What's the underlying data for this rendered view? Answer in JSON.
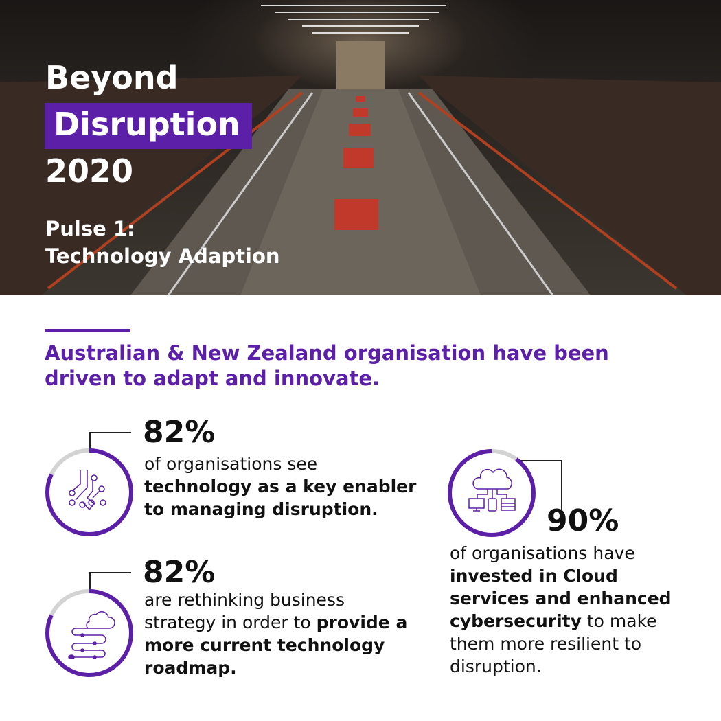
{
  "hero": {
    "title_line1": "Beyond",
    "title_line2": "Disruption",
    "title_line3": "2020",
    "pulse_label": "Pulse 1:",
    "pulse_topic": "Technology Adaption"
  },
  "heading": "Australian & New Zealand organisation have been driven to adapt and innovate.",
  "colors": {
    "accent": "#5c1fa8",
    "ring_track": "#d3d3d3"
  },
  "stats": [
    {
      "percent_label": "82%",
      "value": 82,
      "icon": "circuit-icon",
      "text_plain": "of organisations see ",
      "text_bold": "technology as a key enabler to managing disruption.",
      "text_tail": ""
    },
    {
      "percent_label": "82%",
      "value": 82,
      "icon": "cloud-roadmap-icon",
      "text_plain": "are rethinking business strategy in order to ",
      "text_bold": "provide a more current technology roadmap.",
      "text_tail": ""
    },
    {
      "percent_label": "90%",
      "value": 90,
      "icon": "cloud-devices-icon",
      "text_plain": "of organisations have ",
      "text_bold": "invested in Cloud services and enhanced cybersecurity",
      "text_tail": " to make them more resilient to disruption."
    }
  ]
}
